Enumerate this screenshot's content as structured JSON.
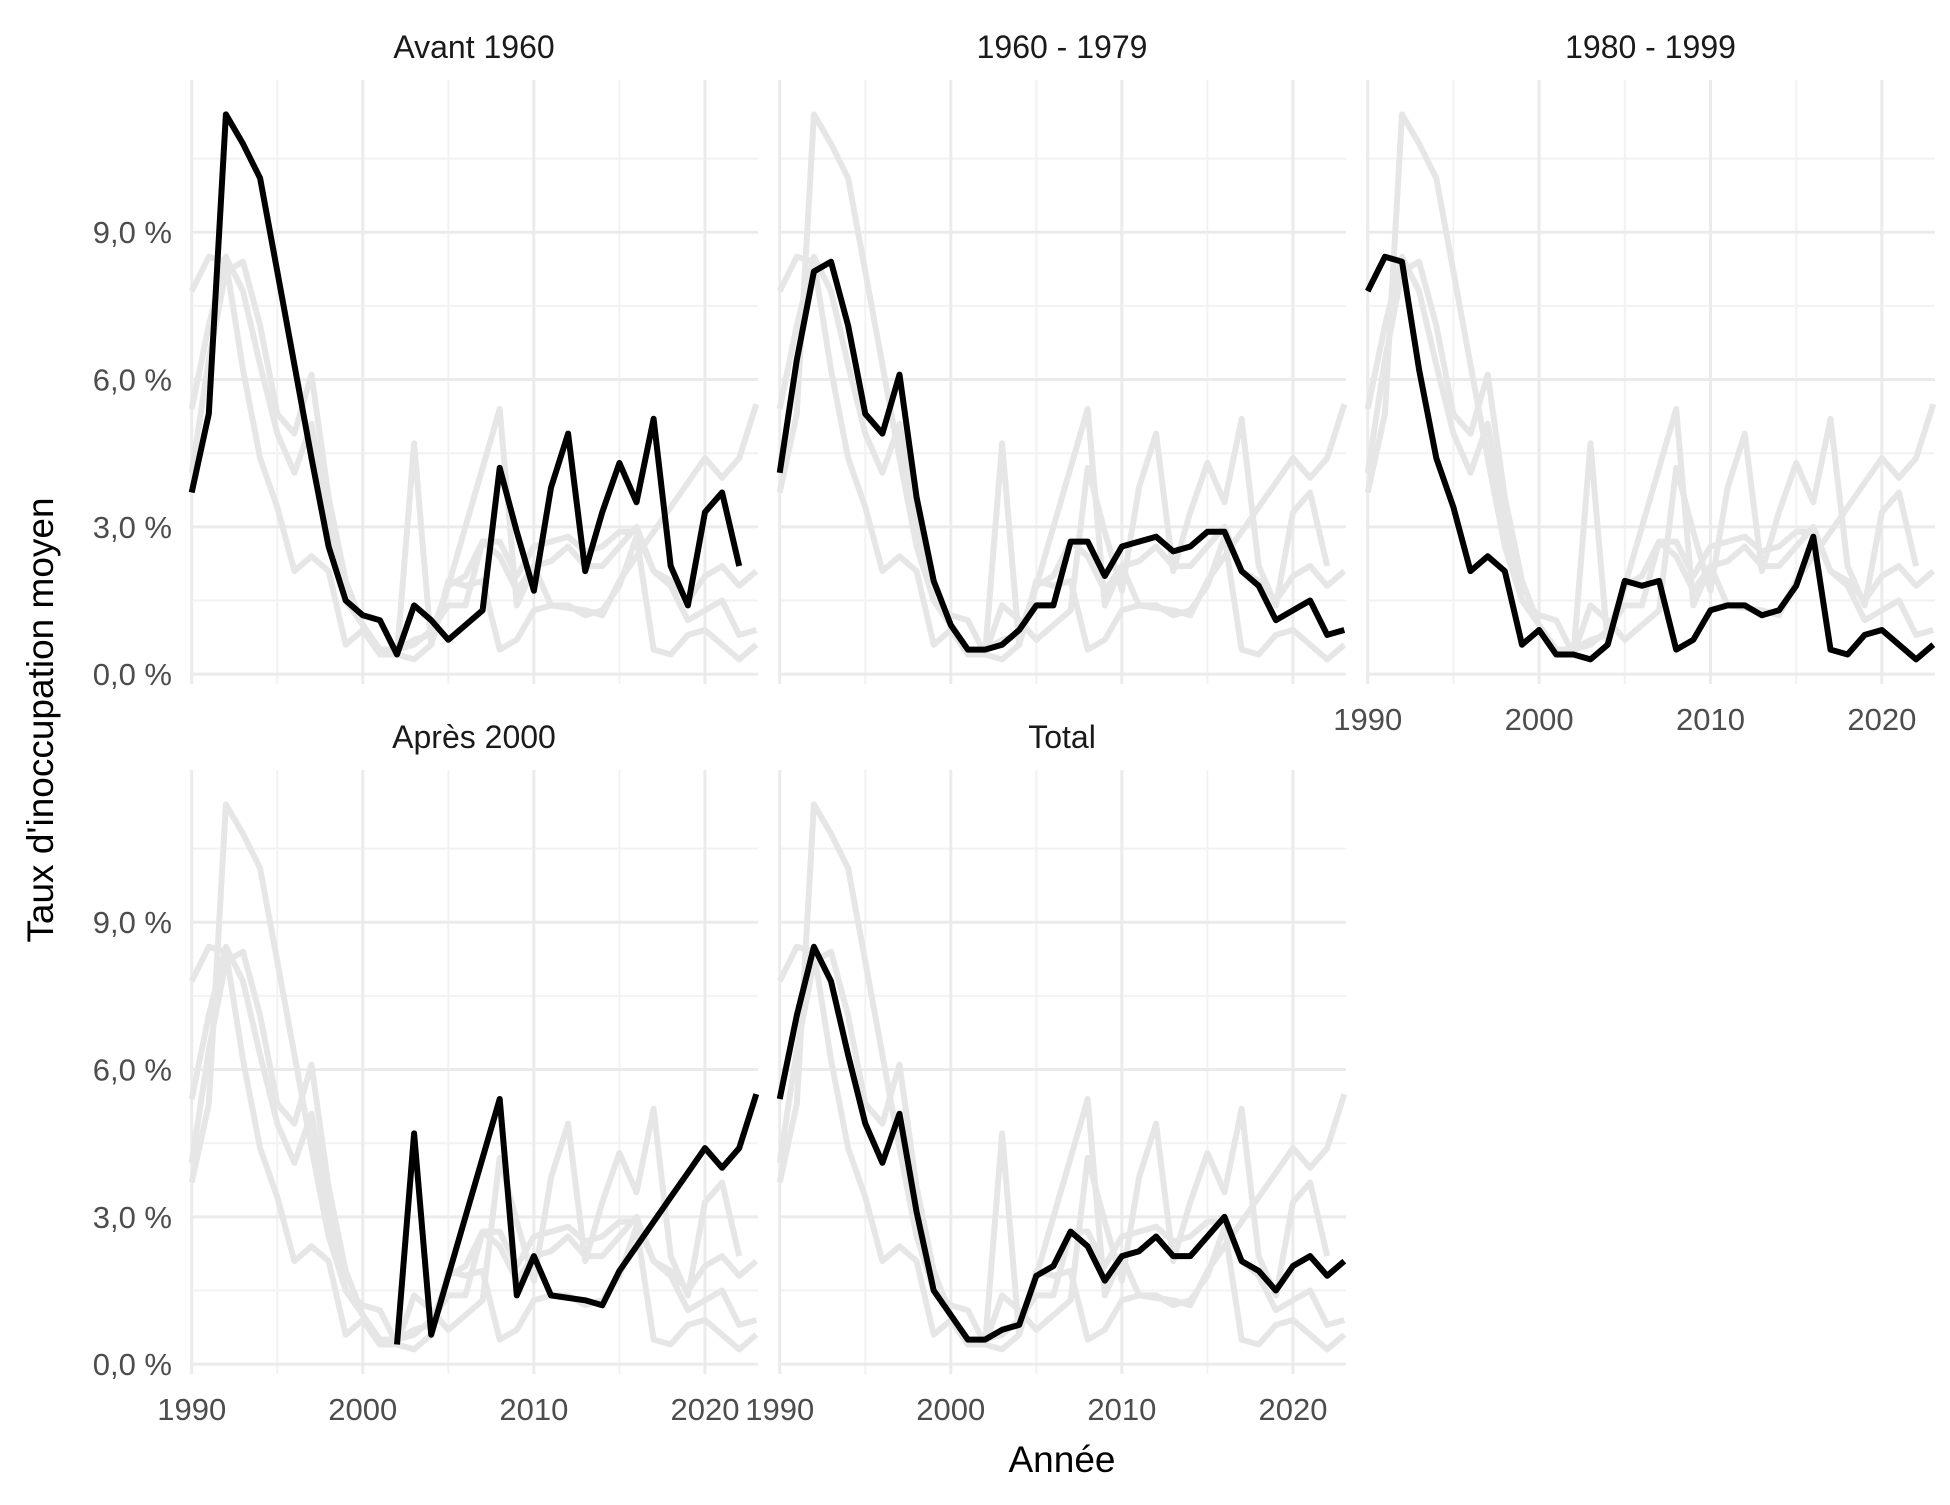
{
  "chart_data": {
    "type": "line",
    "layout": "facet-grid",
    "x": [
      1990,
      1991,
      1992,
      1993,
      1994,
      1995,
      1996,
      1997,
      1998,
      1999,
      2000,
      2001,
      2002,
      2003,
      2004,
      2005,
      2006,
      2007,
      2008,
      2009,
      2010,
      2011,
      2012,
      2013,
      2014,
      2015,
      2016,
      2017,
      2018,
      2019,
      2020,
      2021,
      2022,
      2023
    ],
    "xlim": [
      1989.9,
      2023.1
    ],
    "ylim": [
      -0.002,
      0.121
    ],
    "x_ticks": [
      {
        "value": 1990,
        "label": "1990"
      },
      {
        "value": 2000,
        "label": "2000"
      },
      {
        "value": 2010,
        "label": "2010"
      },
      {
        "value": 2020,
        "label": "2020"
      }
    ],
    "y_ticks": [
      {
        "value": 0.0,
        "label": "0,0 %"
      },
      {
        "value": 0.03,
        "label": "3,0 %"
      },
      {
        "value": 0.06,
        "label": "6,0 %"
      },
      {
        "value": 0.09,
        "label": "9,0 %"
      }
    ],
    "xlabel": "Année",
    "ylabel": "Taux d'inoccupation moyen",
    "grid": true,
    "background_series_color": "#e6e6e6",
    "highlight_series_color": "#000000",
    "series": [
      {
        "name": "Avant 1960",
        "values": [
          0.037,
          0.053,
          0.114,
          0.108,
          0.101,
          0.082,
          0.063,
          0.044,
          0.026,
          0.015,
          0.012,
          0.011,
          0.004,
          0.014,
          0.011,
          0.007,
          0.01,
          0.013,
          0.042,
          0.029,
          0.017,
          0.038,
          0.049,
          0.021,
          0.033,
          0.043,
          0.035,
          0.052,
          0.022,
          0.014,
          0.033,
          0.037,
          0.022,
          null
        ]
      },
      {
        "name": "1960 - 1979",
        "values": [
          0.041,
          0.064,
          0.082,
          0.084,
          0.071,
          0.053,
          0.049,
          0.061,
          0.036,
          0.019,
          0.01,
          0.005,
          0.005,
          0.006,
          0.009,
          0.014,
          0.014,
          0.027,
          0.027,
          0.02,
          0.026,
          0.027,
          0.028,
          0.025,
          0.026,
          0.029,
          0.029,
          0.021,
          0.018,
          0.011,
          0.013,
          0.015,
          0.008,
          0.009
        ]
      },
      {
        "name": "1980 - 1999",
        "values": [
          0.078,
          0.085,
          0.084,
          0.062,
          0.044,
          0.034,
          0.021,
          0.024,
          0.021,
          0.006,
          0.009,
          0.004,
          0.004,
          0.003,
          0.006,
          0.019,
          0.018,
          0.019,
          0.005,
          0.007,
          0.013,
          0.014,
          0.014,
          0.012,
          0.013,
          0.018,
          0.028,
          0.005,
          0.004,
          0.008,
          0.009,
          0.006,
          0.003,
          0.006
        ]
      },
      {
        "name": "Après 2000",
        "values": [
          null,
          null,
          null,
          null,
          null,
          null,
          null,
          null,
          null,
          null,
          null,
          null,
          0.004,
          0.047,
          0.006,
          0.018,
          0.03,
          0.042,
          0.054,
          0.014,
          0.022,
          0.014,
          0.0135,
          0.013,
          0.012,
          0.019,
          0.024,
          0.029,
          0.034,
          0.039,
          0.044,
          0.04,
          0.044,
          0.055
        ]
      },
      {
        "name": "Total",
        "values": [
          0.054,
          0.071,
          0.085,
          0.078,
          0.063,
          0.049,
          0.041,
          0.051,
          0.031,
          0.015,
          0.01,
          0.005,
          0.005,
          0.007,
          0.008,
          0.018,
          0.02,
          0.027,
          0.024,
          0.017,
          0.022,
          0.023,
          0.026,
          0.022,
          0.022,
          0.026,
          0.03,
          0.021,
          0.019,
          0.015,
          0.02,
          0.022,
          0.018,
          0.021
        ]
      }
    ]
  }
}
